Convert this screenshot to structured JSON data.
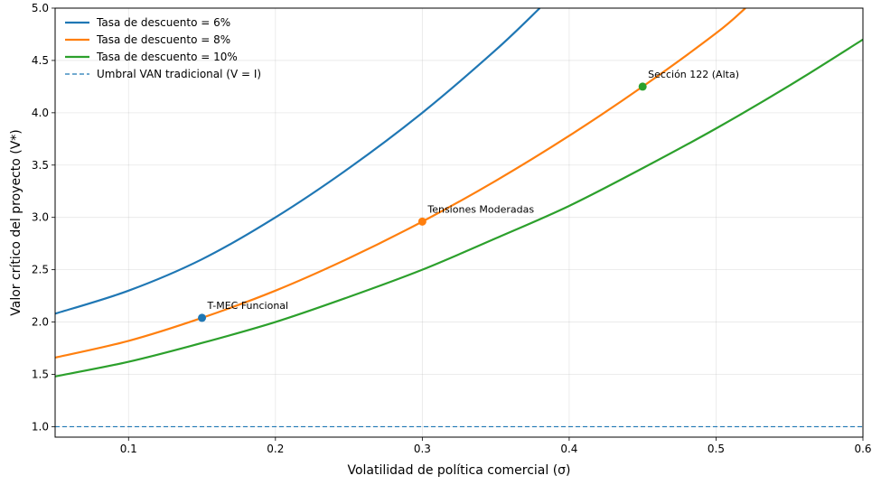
{
  "chart_data": {
    "type": "line",
    "xlabel": "Volatilidad de política comercial (σ)",
    "ylabel": "Valor crítico del proyecto (V*)",
    "xlim": [
      0.05,
      0.6
    ],
    "ylim": [
      0.9,
      5.0
    ],
    "x_ticks": [
      "0.1",
      "0.2",
      "0.3",
      "0.4",
      "0.5",
      "0.6"
    ],
    "y_ticks": [
      "1.0",
      "1.5",
      "2.0",
      "2.5",
      "3.0",
      "3.5",
      "4.0",
      "4.5",
      "5.0"
    ],
    "grid": true,
    "legend_position": "top-left",
    "series": [
      {
        "name": "Tasa de descuento = 6%",
        "color": "#1f77b4",
        "x": [
          0.05,
          0.1,
          0.15,
          0.2,
          0.25,
          0.3,
          0.35,
          0.38
        ],
        "y": [
          2.08,
          2.3,
          2.6,
          3.0,
          3.47,
          4.0,
          4.6,
          5.0
        ]
      },
      {
        "name": "Tasa de descuento = 8%",
        "color": "#ff7f0e",
        "x": [
          0.05,
          0.1,
          0.15,
          0.2,
          0.25,
          0.3,
          0.35,
          0.4,
          0.45,
          0.5,
          0.52
        ],
        "y": [
          1.66,
          1.82,
          2.04,
          2.3,
          2.61,
          2.96,
          3.35,
          3.78,
          4.25,
          4.76,
          5.0
        ]
      },
      {
        "name": "Tasa de descuento = 10%",
        "color": "#2ca02c",
        "x": [
          0.05,
          0.1,
          0.15,
          0.2,
          0.25,
          0.3,
          0.35,
          0.4,
          0.45,
          0.5,
          0.55,
          0.6
        ],
        "y": [
          1.48,
          1.62,
          1.8,
          2.0,
          2.24,
          2.5,
          2.8,
          3.11,
          3.47,
          3.85,
          4.26,
          4.7
        ]
      }
    ],
    "threshold": {
      "name": "Umbral VAN tradicional (V = I)",
      "y": 1.0,
      "color": "#1f77b4"
    },
    "points": [
      {
        "label": "T-MEC Funcional",
        "x": 0.15,
        "y": 2.04,
        "color": "#1f77b4"
      },
      {
        "label": "Tensiones Moderadas",
        "x": 0.3,
        "y": 2.96,
        "color": "#ff7f0e"
      },
      {
        "label": "Sección 122 (Alta)",
        "x": 0.45,
        "y": 4.25,
        "color": "#2ca02c"
      }
    ]
  }
}
